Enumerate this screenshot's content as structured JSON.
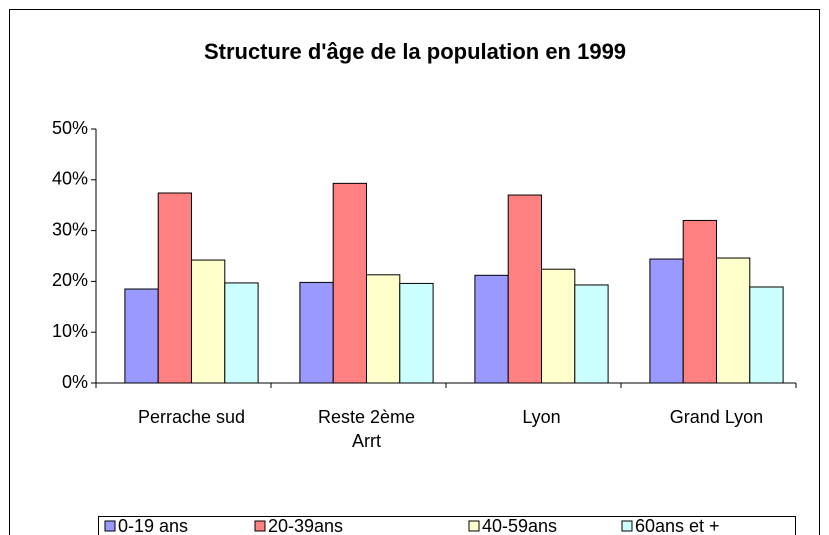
{
  "chart_data": {
    "type": "bar",
    "title": "Structure d'âge de la population en 1999",
    "categories": [
      "Perrache sud",
      "Reste 2ème Arrt",
      "Lyon",
      "Grand Lyon"
    ],
    "series": [
      {
        "name": "0-19 ans",
        "color": "#9999ff",
        "values": [
          18.5,
          19.8,
          21.2,
          24.4
        ]
      },
      {
        "name": "20-39ans",
        "color": "#ff8080",
        "values": [
          37.4,
          39.3,
          37.0,
          32.0
        ]
      },
      {
        "name": "40-59ans",
        "color": "#ffffcc",
        "values": [
          24.2,
          21.3,
          22.4,
          24.6
        ]
      },
      {
        "name": "60ans et +",
        "color": "#ccffff",
        "values": [
          19.7,
          19.6,
          19.3,
          18.9
        ]
      }
    ],
    "ylim": [
      0,
      50
    ],
    "yticks": [
      {
        "value": 0,
        "label": "0%"
      },
      {
        "value": 10,
        "label": "10%"
      },
      {
        "value": 20,
        "label": "20%"
      },
      {
        "value": 30,
        "label": "30%"
      },
      {
        "value": 40,
        "label": "40%"
      },
      {
        "value": 50,
        "label": "50%"
      }
    ],
    "legend": "bottom"
  }
}
